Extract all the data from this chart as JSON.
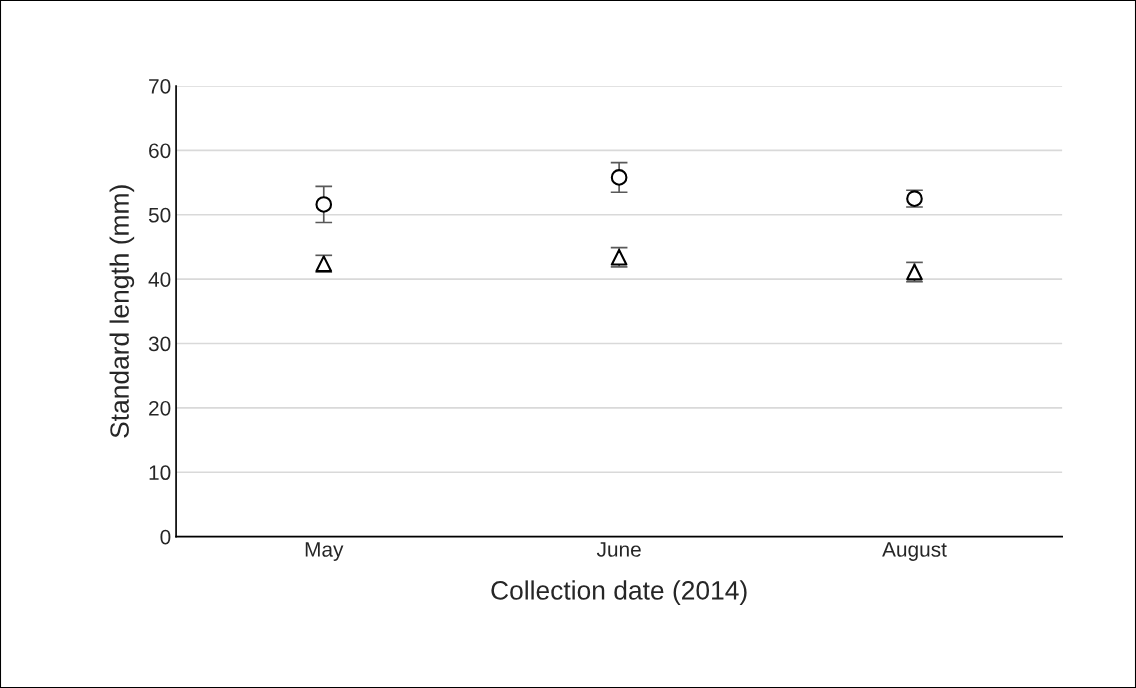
{
  "chart_data": {
    "type": "scatter",
    "xlabel": "Collection date (2014)",
    "ylabel": "Standard length (mm)",
    "categories": [
      "May",
      "June",
      "August"
    ],
    "series": [
      {
        "color": "#000000",
        "marker": "circle",
        "values": [
          51.6,
          55.8,
          52.5
        ],
        "errors": [
          2.8,
          2.3,
          1.3
        ]
      },
      {
        "color": "#000000",
        "marker": "triangle",
        "values": [
          42.4,
          43.4,
          41.1
        ],
        "errors": [
          1.3,
          1.5,
          1.5
        ]
      }
    ],
    "ylim": [
      0,
      70
    ],
    "yticks": [
      0,
      10,
      20,
      30,
      40,
      50,
      60,
      70
    ],
    "grid": "y",
    "legend": false
  }
}
